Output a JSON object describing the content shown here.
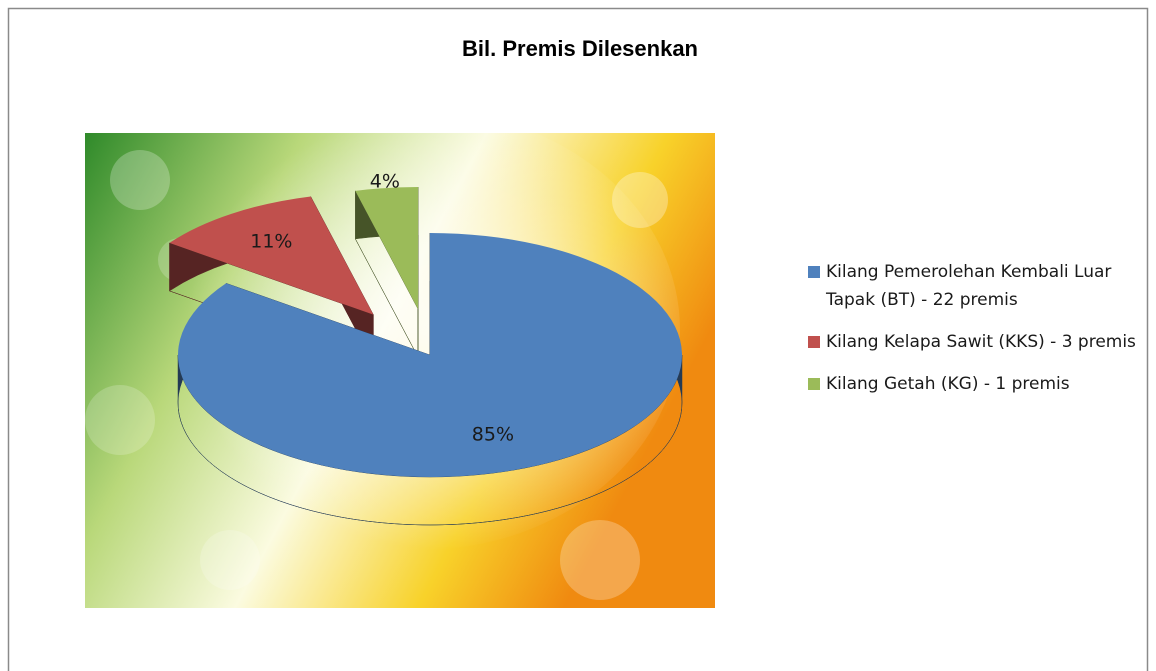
{
  "chart_data": {
    "type": "pie",
    "title": "Bil. Premis Dilesenkan",
    "categories": [
      "Kilang Pemerolehan Kembali Luar Tapak (BT) - 22 premis",
      "Kilang Kelapa Sawit (KKS) - 3 premis",
      "Kilang Getah (KG) - 1 premis"
    ],
    "values": [
      85,
      11,
      4
    ],
    "value_labels": [
      "85%",
      "11%",
      "4%"
    ],
    "colors": [
      "#4f81bd",
      "#c0504d",
      "#9bbb59"
    ],
    "legend": "right"
  }
}
